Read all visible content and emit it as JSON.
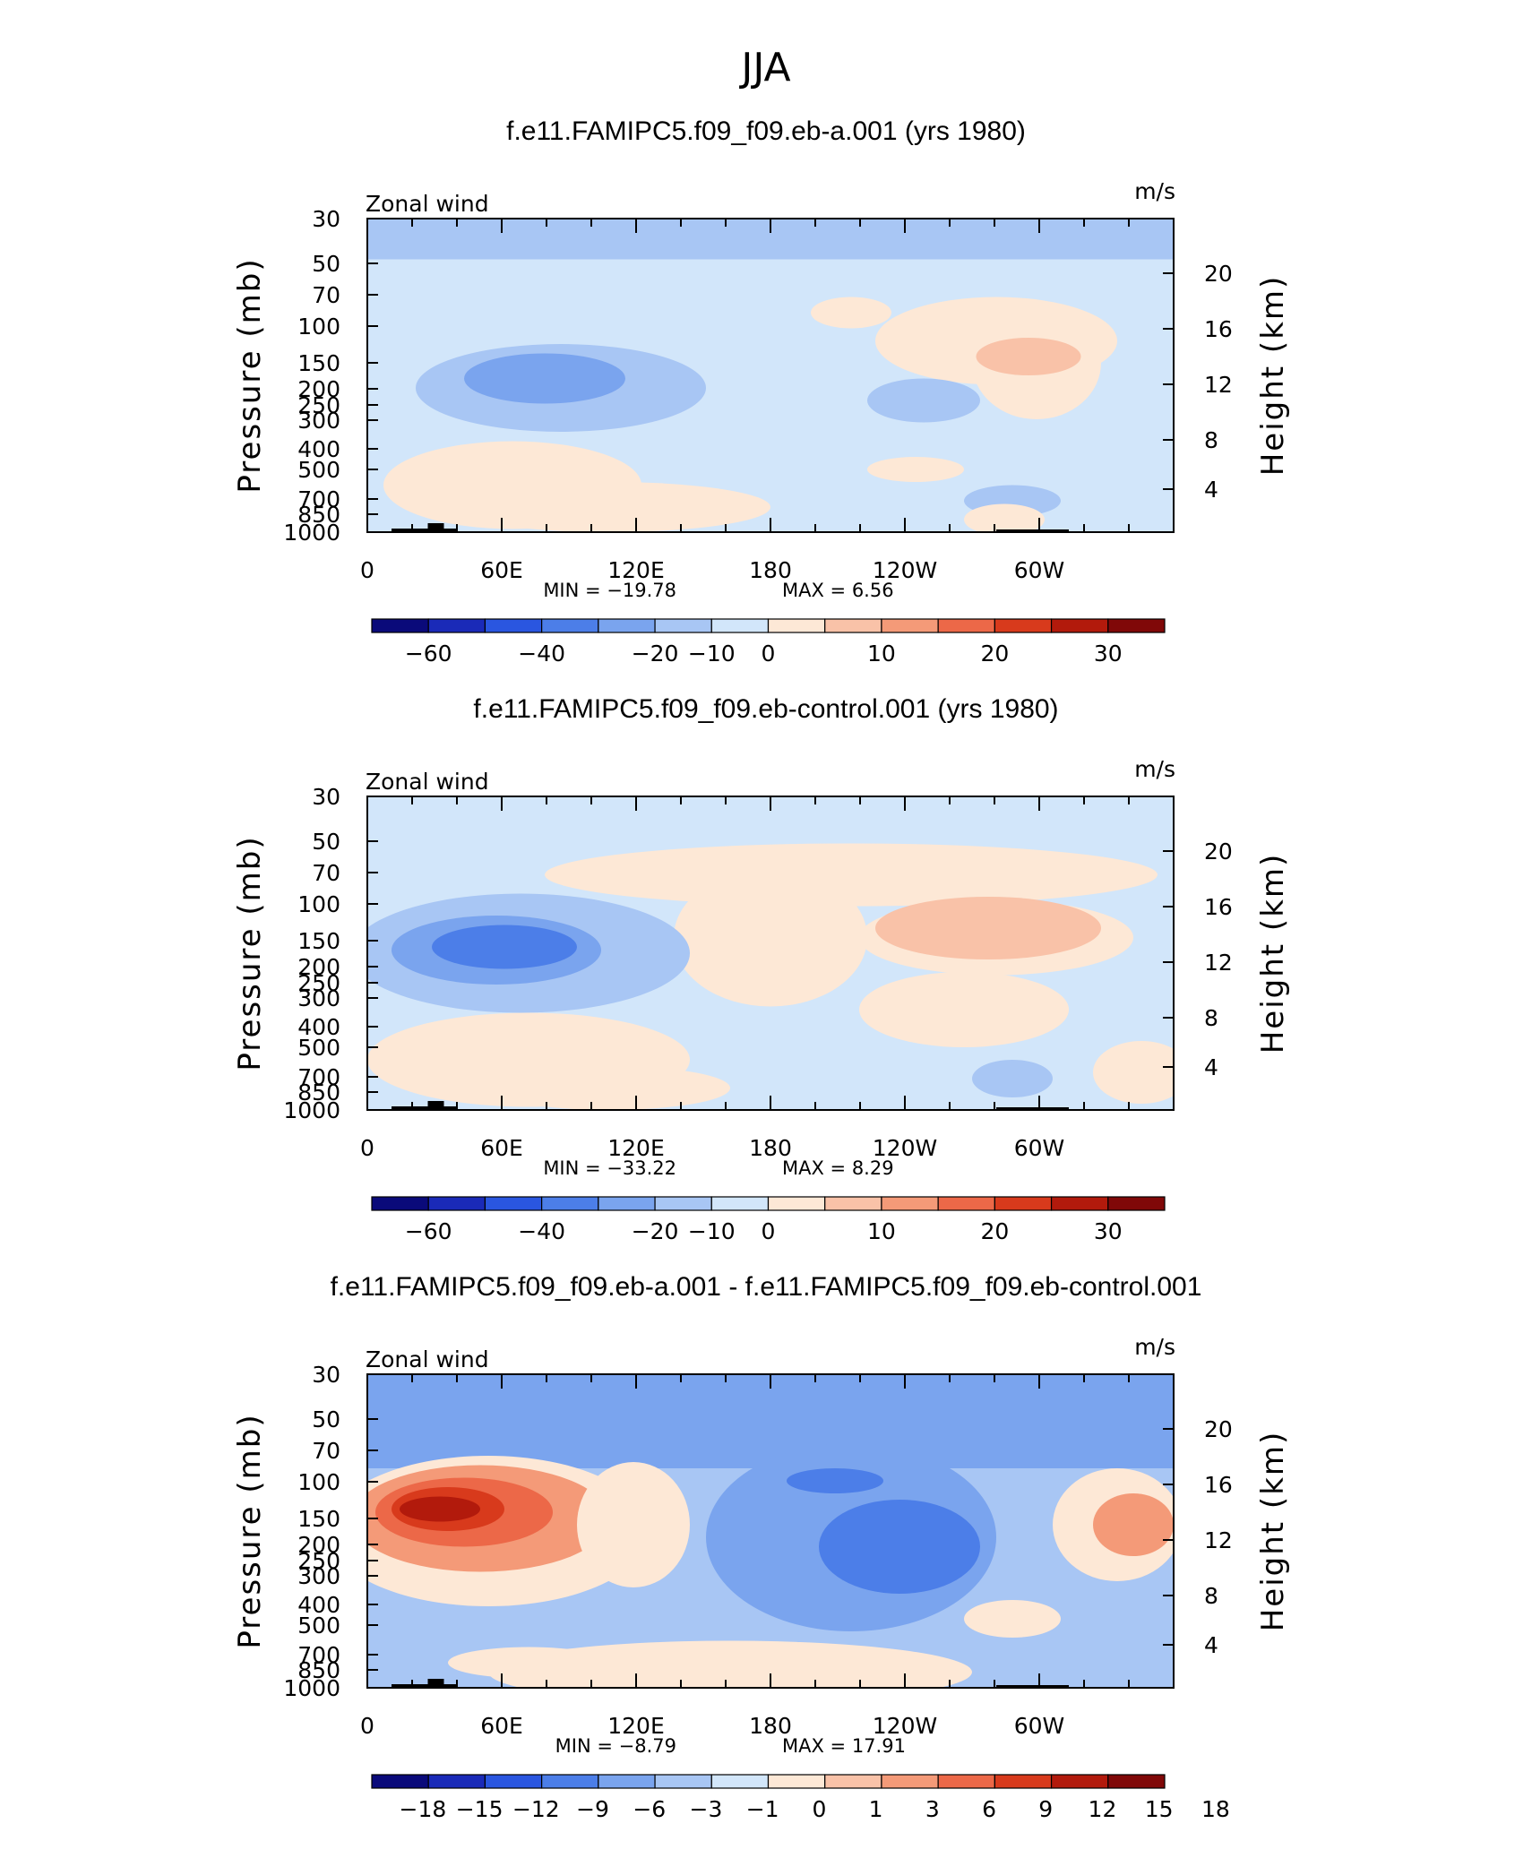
{
  "figure_title": "JJA",
  "colors": {
    "cbar": [
      "#0a0a7a",
      "#1a2ab8",
      "#2a56e0",
      "#4c7ee8",
      "#7aa4ee",
      "#a8c6f4",
      "#d2e6fa",
      "#fde8d6",
      "#f9c2a8",
      "#f49a78",
      "#ec6848",
      "#d83a1c",
      "#b21a0c",
      "#800808"
    ],
    "frame": "#000000",
    "terrain": "#000000"
  },
  "chart_data": [
    {
      "type": "heatmap",
      "title": "f.e11.FAMIPC5.f09_f09.eb-a.001 (yrs 1980)",
      "variable_label": "Zonal wind",
      "units_label": "m/s",
      "xlabel": "",
      "ylabel": "Pressure (mb)",
      "y2label": "Height (km)",
      "x_ticks": [
        "0",
        "60E",
        "120E",
        "180",
        "120W",
        "60W"
      ],
      "y_ticks": [
        "30",
        "50",
        "70",
        "100",
        "150",
        "200",
        "250",
        "300",
        "400",
        "500",
        "700",
        "850",
        "1000"
      ],
      "y2_ticks": [
        "20",
        "16",
        "12",
        "8",
        "4"
      ],
      "min_text": "MIN =  −19.78",
      "max_text": "MAX =    6.56",
      "colorbar_labels": [
        "−60",
        "−40",
        "−20",
        "−10",
        "0",
        "10",
        "20",
        "30"
      ],
      "min": -19.78,
      "max": 6.56
    },
    {
      "type": "heatmap",
      "title": "f.e11.FAMIPC5.f09_f09.eb-control.001 (yrs 1980)",
      "variable_label": "Zonal wind",
      "units_label": "m/s",
      "xlabel": "",
      "ylabel": "Pressure (mb)",
      "y2label": "Height (km)",
      "x_ticks": [
        "0",
        "60E",
        "120E",
        "180",
        "120W",
        "60W"
      ],
      "y_ticks": [
        "30",
        "50",
        "70",
        "100",
        "150",
        "200",
        "250",
        "300",
        "400",
        "500",
        "700",
        "850",
        "1000"
      ],
      "y2_ticks": [
        "20",
        "16",
        "12",
        "8",
        "4"
      ],
      "min_text": "MIN =  −33.22",
      "max_text": "MAX =    8.29",
      "colorbar_labels": [
        "−60",
        "−40",
        "−20",
        "−10",
        "0",
        "10",
        "20",
        "30"
      ],
      "min": -33.22,
      "max": 8.29
    },
    {
      "type": "heatmap",
      "title": "f.e11.FAMIPC5.f09_f09.eb-a.001 - f.e11.FAMIPC5.f09_f09.eb-control.001",
      "variable_label": "Zonal wind",
      "units_label": "m/s",
      "xlabel": "",
      "ylabel": "Pressure (mb)",
      "y2label": "Height (km)",
      "x_ticks": [
        "0",
        "60E",
        "120E",
        "180",
        "120W",
        "60W"
      ],
      "y_ticks": [
        "30",
        "50",
        "70",
        "100",
        "150",
        "200",
        "250",
        "300",
        "400",
        "500",
        "700",
        "850",
        "1000"
      ],
      "y2_ticks": [
        "20",
        "16",
        "12",
        "8",
        "4"
      ],
      "min_text": "MIN =   −8.79",
      "max_text": "MAX =   17.91",
      "colorbar_labels": [
        "−18",
        "−15",
        "−12",
        "−9",
        "−6",
        "−3",
        "−1",
        "0",
        "1",
        "3",
        "6",
        "9",
        "12",
        "15",
        "18"
      ],
      "min": -8.79,
      "max": 17.91
    }
  ]
}
